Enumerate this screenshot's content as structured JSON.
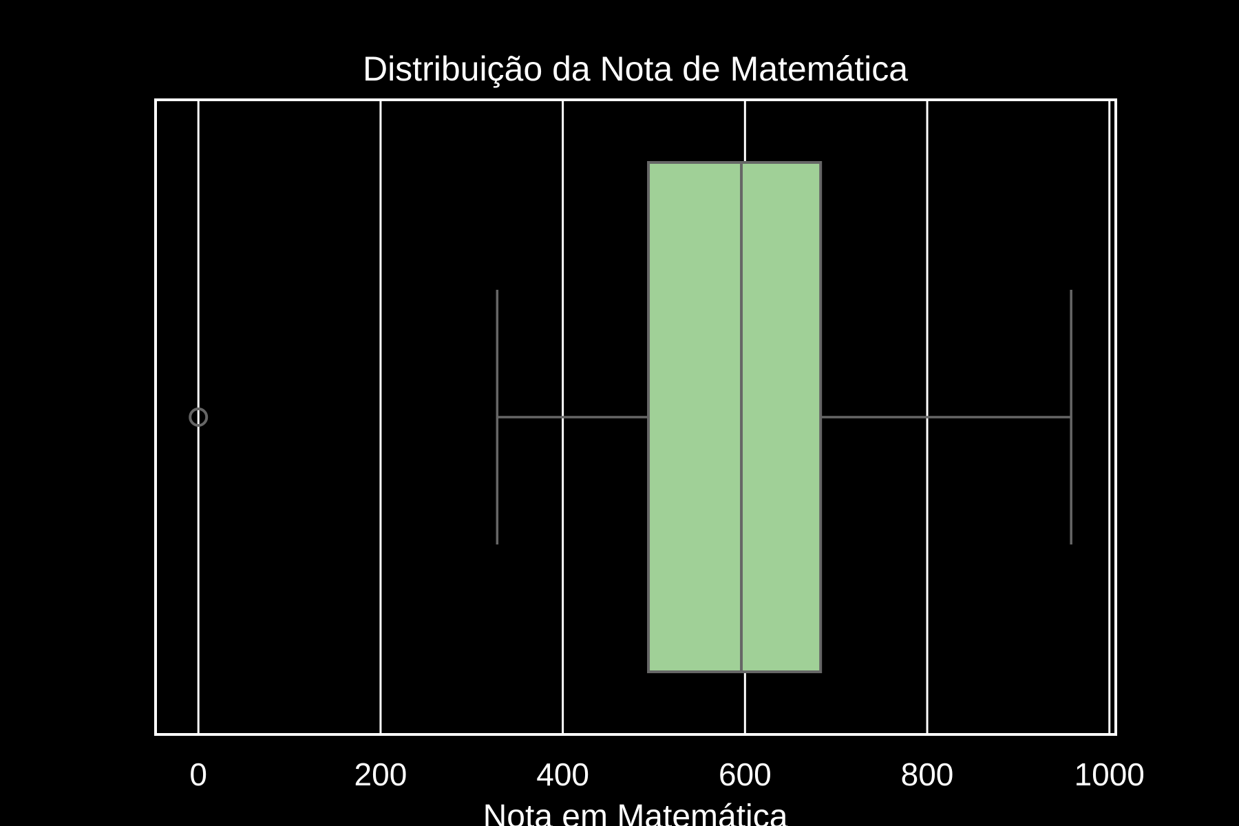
{
  "chart_data": {
    "type": "boxplot",
    "orientation": "horizontal",
    "title": "Distribuição da Nota de Matemática",
    "xlabel": "Nota em Matemática",
    "ylabel": "",
    "xlim": [
      -47,
      1007
    ],
    "xticks": [
      0,
      200,
      400,
      600,
      800,
      1000
    ],
    "xtick_labels": [
      "0",
      "200",
      "400",
      "600",
      "800",
      "1000"
    ],
    "grid": "vertical",
    "box": {
      "whisker_low": 328,
      "q1": 494,
      "median": 596,
      "q3": 683,
      "whisker_high": 958,
      "outliers": [
        0
      ]
    },
    "colors": {
      "background": "#000000",
      "box_fill": "#a0d097",
      "box_edge": "#666666",
      "grid": "#ffffff",
      "spine": "#ffffff",
      "text": "#ffffff"
    }
  }
}
